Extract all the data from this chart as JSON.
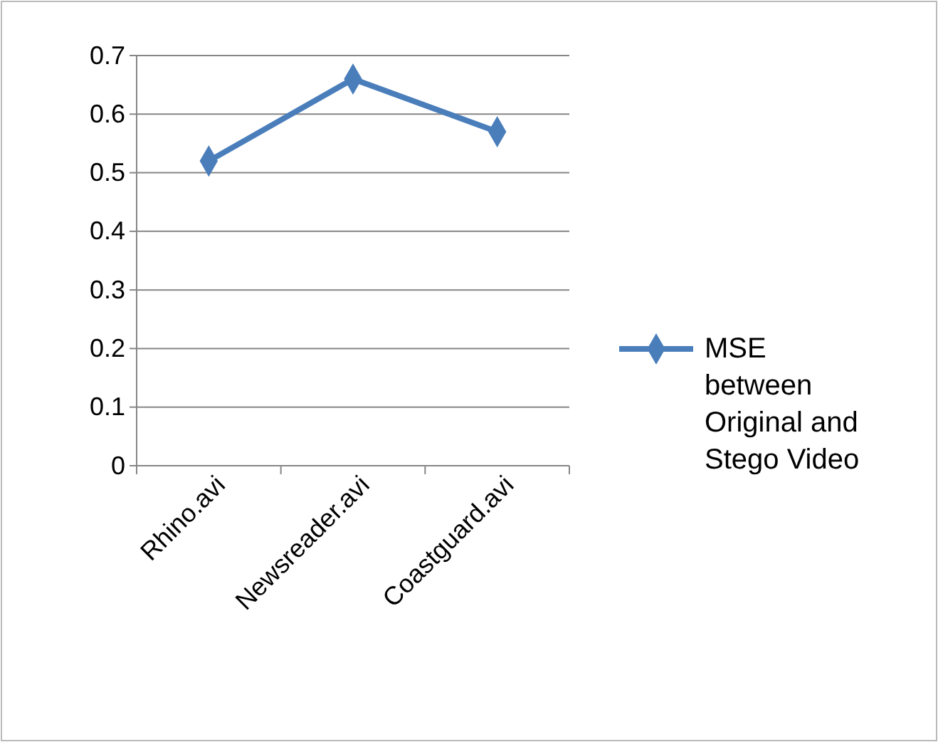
{
  "chart_data": {
    "type": "line",
    "categories": [
      "Rhino.avi",
      "Newsreader.avi",
      "Coastguard.avi"
    ],
    "series": [
      {
        "name": "MSE between Original and Stego Video",
        "color": "#4a7ebb",
        "values": [
          0.52,
          0.66,
          0.57
        ]
      }
    ],
    "ylim": [
      0,
      0.7
    ],
    "yticks": [
      0,
      0.1,
      0.2,
      0.3,
      0.4,
      0.5,
      0.6,
      0.7
    ],
    "grid": "y",
    "legend": "right",
    "marker": "diamond",
    "line_style": "solid"
  }
}
